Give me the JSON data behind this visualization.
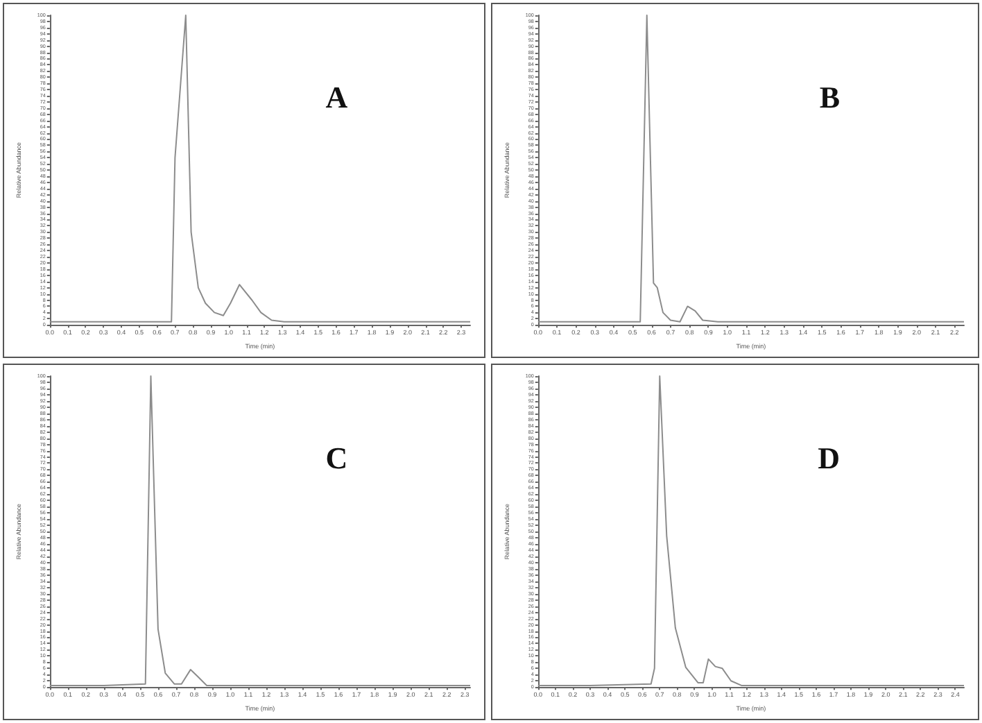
{
  "chart_data": [
    {
      "type": "line",
      "title": "A",
      "xlabel": "Time (min)",
      "ylabel": "Relative Abundance",
      "color": "#8c8c8c",
      "grid": false,
      "marker": "none",
      "line_style": "solid",
      "x": [
        0.0,
        0.3,
        0.6,
        0.68,
        0.7,
        0.76,
        0.79,
        0.83,
        0.87,
        0.92,
        0.97,
        1.01,
        1.06,
        1.13,
        1.18,
        1.24,
        1.31,
        1.6,
        2.0,
        2.35
      ],
      "values": [
        1,
        1,
        1,
        1,
        54,
        100,
        30,
        12,
        7,
        4,
        3,
        7,
        13,
        8,
        4,
        1.5,
        1,
        1,
        1,
        1
      ],
      "xlim": [
        0,
        2.35
      ],
      "ylim": [
        0,
        100
      ],
      "xticks": [
        {
          "value": 0,
          "label": "0.0"
        },
        {
          "value": 0.1,
          "label": "0.1"
        },
        {
          "value": 0.2,
          "label": "0.2"
        },
        {
          "value": 0.3,
          "label": "0.3"
        },
        {
          "value": 0.4,
          "label": "0.4"
        },
        {
          "value": 0.5,
          "label": "0.5"
        },
        {
          "value": 0.6,
          "label": "0.6"
        },
        {
          "value": 0.7,
          "label": "0.7"
        },
        {
          "value": 0.8,
          "label": "0.8"
        },
        {
          "value": 0.9,
          "label": "0.9"
        },
        {
          "value": 1,
          "label": "1.0"
        },
        {
          "value": 1.1,
          "label": "1.1"
        },
        {
          "value": 1.2,
          "label": "1.2"
        },
        {
          "value": 1.3,
          "label": "1.3"
        },
        {
          "value": 1.4,
          "label": "1.4"
        },
        {
          "value": 1.5,
          "label": "1.5"
        },
        {
          "value": 1.6,
          "label": "1.6"
        },
        {
          "value": 1.7,
          "label": "1.7"
        },
        {
          "value": 1.8,
          "label": "1.8"
        },
        {
          "value": 1.9,
          "label": "1.9"
        },
        {
          "value": 2,
          "label": "2.0"
        },
        {
          "value": 2.1,
          "label": "2.1"
        },
        {
          "value": 2.2,
          "label": "2.2"
        },
        {
          "value": 2.3,
          "label": "2.3"
        }
      ],
      "yticks": [
        0,
        2,
        4,
        6,
        8,
        10,
        12,
        14,
        16,
        18,
        20,
        22,
        24,
        26,
        28,
        30,
        32,
        34,
        36,
        38,
        40,
        42,
        44,
        46,
        48,
        50,
        52,
        54,
        56,
        58,
        60,
        62,
        64,
        66,
        68,
        70,
        72,
        74,
        76,
        78,
        80,
        82,
        84,
        86,
        88,
        90,
        92,
        94,
        96,
        98,
        100
      ]
    },
    {
      "type": "line",
      "title": "B",
      "xlabel": "Time (min)",
      "ylabel": "Relative Abundance",
      "color": "#8c8c8c",
      "grid": false,
      "marker": "none",
      "line_style": "solid",
      "x": [
        0.0,
        0.2,
        0.4,
        0.54,
        0.575,
        0.61,
        0.63,
        0.66,
        0.7,
        0.75,
        0.79,
        0.83,
        0.87,
        0.95,
        1.3,
        1.8,
        2.25
      ],
      "values": [
        1,
        1,
        1,
        1,
        100,
        13.5,
        12,
        4,
        1.5,
        1,
        6,
        4.5,
        1.5,
        1,
        1,
        1,
        1
      ],
      "xlim": [
        0,
        2.25
      ],
      "ylim": [
        0,
        100
      ],
      "xticks": [
        {
          "value": 0,
          "label": "0.0"
        },
        {
          "value": 0.1,
          "label": "0.1"
        },
        {
          "value": 0.2,
          "label": "0.2"
        },
        {
          "value": 0.3,
          "label": "0.3"
        },
        {
          "value": 0.4,
          "label": "0.4"
        },
        {
          "value": 0.5,
          "label": "0.5"
        },
        {
          "value": 0.6,
          "label": "0.6"
        },
        {
          "value": 0.7,
          "label": "0.7"
        },
        {
          "value": 0.8,
          "label": "0.8"
        },
        {
          "value": 0.9,
          "label": "0.9"
        },
        {
          "value": 1,
          "label": "1.0"
        },
        {
          "value": 1.1,
          "label": "1.1"
        },
        {
          "value": 1.2,
          "label": "1.2"
        },
        {
          "value": 1.3,
          "label": "1.3"
        },
        {
          "value": 1.4,
          "label": "1.4"
        },
        {
          "value": 1.5,
          "label": "1.5"
        },
        {
          "value": 1.6,
          "label": "1.6"
        },
        {
          "value": 1.7,
          "label": "1.7"
        },
        {
          "value": 1.8,
          "label": "1.8"
        },
        {
          "value": 1.9,
          "label": "1.9"
        },
        {
          "value": 2,
          "label": "2.0"
        },
        {
          "value": 2.1,
          "label": "2.1"
        },
        {
          "value": 2.2,
          "label": "2.2"
        }
      ],
      "yticks": [
        0,
        2,
        4,
        6,
        8,
        10,
        12,
        14,
        16,
        18,
        20,
        22,
        24,
        26,
        28,
        30,
        32,
        34,
        36,
        38,
        40,
        42,
        44,
        46,
        48,
        50,
        52,
        54,
        56,
        58,
        60,
        62,
        64,
        66,
        68,
        70,
        72,
        74,
        76,
        78,
        80,
        82,
        84,
        86,
        88,
        90,
        92,
        94,
        96,
        98,
        100
      ]
    },
    {
      "type": "line",
      "title": "C",
      "xlabel": "Time (min)",
      "ylabel": "Relative Abundance",
      "color": "#8c8c8c",
      "grid": false,
      "marker": "none",
      "line_style": "solid",
      "x": [
        0.0,
        0.3,
        0.53,
        0.56,
        0.6,
        0.64,
        0.69,
        0.73,
        0.78,
        0.82,
        0.87,
        1.2,
        1.8,
        2.33
      ],
      "values": [
        0.5,
        0.5,
        1,
        100,
        18.6,
        4.5,
        1,
        1,
        5.6,
        3.4,
        0.5,
        0.5,
        0.5,
        0.5
      ],
      "xlim": [
        0,
        2.33
      ],
      "ylim": [
        0,
        100
      ],
      "xticks": [
        {
          "value": 0,
          "label": "0.0"
        },
        {
          "value": 0.1,
          "label": "0.1"
        },
        {
          "value": 0.2,
          "label": "0.2"
        },
        {
          "value": 0.3,
          "label": "0.3"
        },
        {
          "value": 0.4,
          "label": "0.4"
        },
        {
          "value": 0.5,
          "label": "0.5"
        },
        {
          "value": 0.6,
          "label": "0.6"
        },
        {
          "value": 0.7,
          "label": "0.7"
        },
        {
          "value": 0.8,
          "label": "0.8"
        },
        {
          "value": 0.9,
          "label": "0.9"
        },
        {
          "value": 1,
          "label": "1.0"
        },
        {
          "value": 1.1,
          "label": "1.1"
        },
        {
          "value": 1.2,
          "label": "1.2"
        },
        {
          "value": 1.3,
          "label": "1.3"
        },
        {
          "value": 1.4,
          "label": "1.4"
        },
        {
          "value": 1.5,
          "label": "1.5"
        },
        {
          "value": 1.6,
          "label": "1.6"
        },
        {
          "value": 1.7,
          "label": "1.7"
        },
        {
          "value": 1.8,
          "label": "1.8"
        },
        {
          "value": 1.9,
          "label": "1.9"
        },
        {
          "value": 2,
          "label": "2.0"
        },
        {
          "value": 2.1,
          "label": "2.1"
        },
        {
          "value": 2.2,
          "label": "2.2"
        },
        {
          "value": 2.3,
          "label": "2.3"
        }
      ],
      "yticks": [
        0,
        2,
        4,
        6,
        8,
        10,
        12,
        14,
        16,
        18,
        20,
        22,
        24,
        26,
        28,
        30,
        32,
        34,
        36,
        38,
        40,
        42,
        44,
        46,
        48,
        50,
        52,
        54,
        56,
        58,
        60,
        62,
        64,
        66,
        68,
        70,
        72,
        74,
        76,
        78,
        80,
        82,
        84,
        86,
        88,
        90,
        92,
        94,
        96,
        98,
        100
      ]
    },
    {
      "type": "line",
      "title": "D",
      "xlabel": "Time (min)",
      "ylabel": "Relative Abundance",
      "color": "#8c8c8c",
      "grid": false,
      "marker": "none",
      "line_style": "solid",
      "x": [
        0.0,
        0.3,
        0.65,
        0.67,
        0.7,
        0.74,
        0.79,
        0.85,
        0.92,
        0.95,
        0.98,
        1.02,
        1.06,
        1.11,
        1.17,
        1.5,
        2.0,
        2.45
      ],
      "values": [
        0.5,
        0.5,
        1,
        6,
        100,
        48.6,
        19,
        6.3,
        1.4,
        1.4,
        9,
        6.6,
        6,
        2,
        0.5,
        0.5,
        0.5,
        0.5
      ],
      "xlim": [
        0,
        2.45
      ],
      "ylim": [
        0,
        100
      ],
      "xticks": [
        {
          "value": 0,
          "label": "0.0"
        },
        {
          "value": 0.1,
          "label": "0.1"
        },
        {
          "value": 0.2,
          "label": "0.2"
        },
        {
          "value": 0.3,
          "label": "0.3"
        },
        {
          "value": 0.4,
          "label": "0.4"
        },
        {
          "value": 0.5,
          "label": "0.5"
        },
        {
          "value": 0.6,
          "label": "0.6"
        },
        {
          "value": 0.7,
          "label": "0.7"
        },
        {
          "value": 0.8,
          "label": "0.8"
        },
        {
          "value": 0.9,
          "label": "0.9"
        },
        {
          "value": 1,
          "label": "1.0"
        },
        {
          "value": 1.1,
          "label": "1.1"
        },
        {
          "value": 1.2,
          "label": "1.2"
        },
        {
          "value": 1.3,
          "label": "1.3"
        },
        {
          "value": 1.4,
          "label": "1.4"
        },
        {
          "value": 1.5,
          "label": "1.5"
        },
        {
          "value": 1.6,
          "label": "1.6"
        },
        {
          "value": 1.7,
          "label": "1.7"
        },
        {
          "value": 1.8,
          "label": "1.8"
        },
        {
          "value": 1.9,
          "label": "1.9"
        },
        {
          "value": 2,
          "label": "2.0"
        },
        {
          "value": 2.1,
          "label": "2.1"
        },
        {
          "value": 2.2,
          "label": "2.2"
        },
        {
          "value": 2.3,
          "label": "2.3"
        },
        {
          "value": 2.4,
          "label": "2.4"
        }
      ],
      "yticks": [
        0,
        2,
        4,
        6,
        8,
        10,
        12,
        14,
        16,
        18,
        20,
        22,
        24,
        26,
        28,
        30,
        32,
        34,
        36,
        38,
        40,
        42,
        44,
        46,
        48,
        50,
        52,
        54,
        56,
        58,
        60,
        62,
        64,
        66,
        68,
        70,
        72,
        74,
        76,
        78,
        80,
        82,
        84,
        86,
        88,
        90,
        92,
        94,
        96,
        98,
        100
      ]
    }
  ]
}
